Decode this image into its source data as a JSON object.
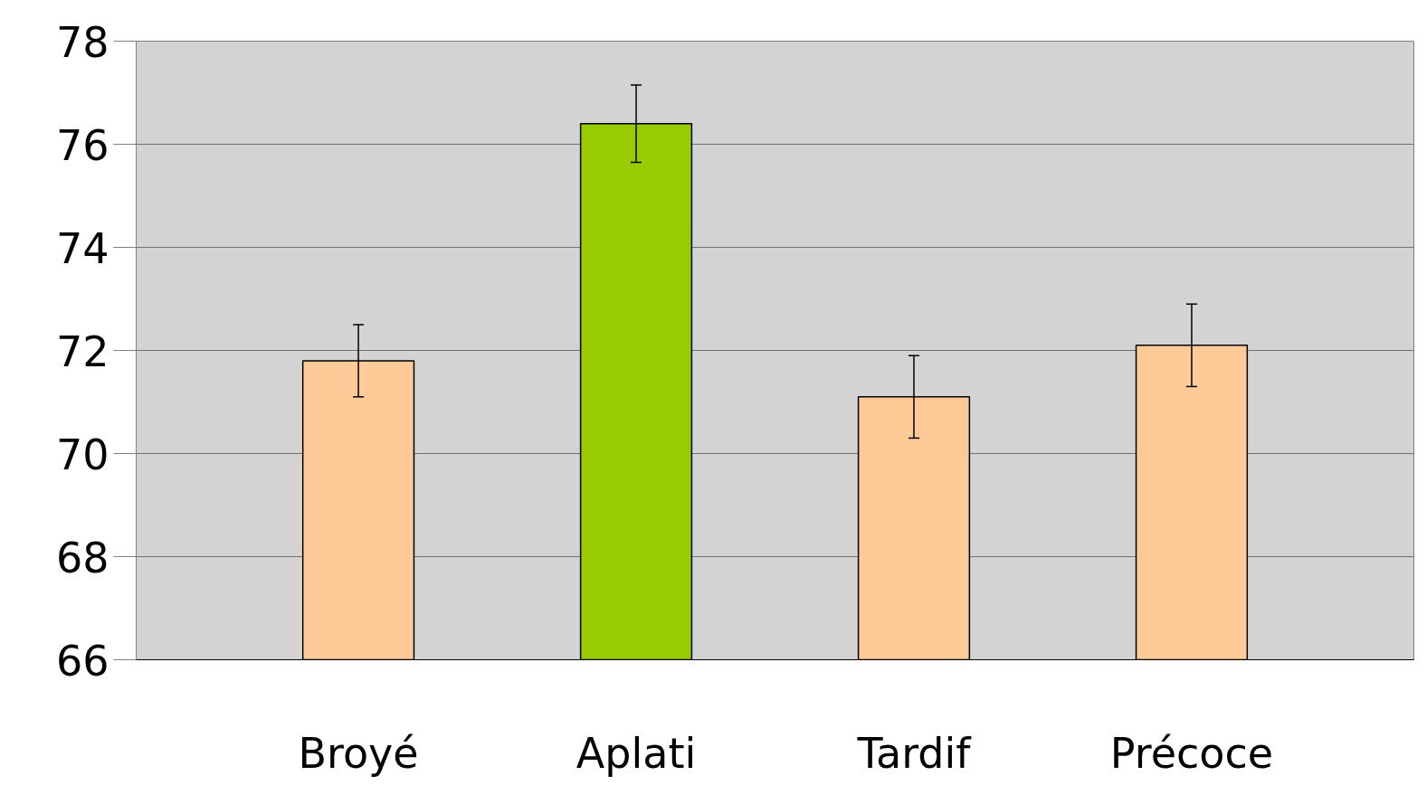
{
  "chart_data": {
    "type": "bar",
    "categories": [
      "Broyé",
      "Aplati",
      "Tardif",
      "Précoce"
    ],
    "values": [
      71.8,
      76.4,
      71.1,
      72.1
    ],
    "colors": [
      "#fecb98",
      "#99cc00",
      "#fecb98",
      "#fecb98"
    ],
    "errors": [
      0.7,
      0.75,
      0.8,
      0.8
    ],
    "ylim": [
      66,
      78
    ],
    "yticks": [
      66,
      68,
      70,
      72,
      74,
      76,
      78
    ],
    "grid": "y"
  }
}
